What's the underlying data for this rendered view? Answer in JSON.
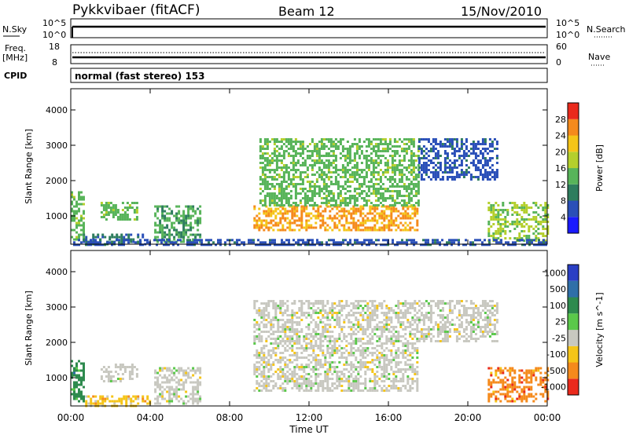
{
  "header": {
    "title": "Pykkvibaer (fitACF)",
    "beam": "Beam 12",
    "date": "15/Nov/2010"
  },
  "top_panels": {
    "nsky_label": "N.Sky",
    "nsearch_label": "N.Search",
    "freq_label_1": "Freq.",
    "freq_label_2": "[MHz]",
    "nave_label": "Nave",
    "cpid_label": "CPID",
    "cpid_value": "normal (fast stereo) 153",
    "noise_ticks_left": [
      "10^5",
      "10^0"
    ],
    "noise_ticks_right": [
      "10^5",
      "10^0"
    ],
    "freq_ticks": [
      "18",
      "8"
    ],
    "nave_ticks": [
      "60",
      "0"
    ]
  },
  "chart_data": [
    {
      "type": "heatmap",
      "name": "Power",
      "ylabel": "Slant Range [km]",
      "xlabel": "Time UT",
      "ylim": [
        200,
        4600
      ],
      "yticks": [
        "1000",
        "2000",
        "3000",
        "4000"
      ],
      "xticks": [
        "00:00",
        "04:00",
        "08:00",
        "12:00",
        "16:00",
        "20:00",
        "00:00"
      ],
      "colorbar": {
        "label": "Power [dB]",
        "range": [
          0,
          32
        ],
        "ticks": [
          "4",
          "8",
          "12",
          "16",
          "20",
          "24",
          "28"
        ],
        "colors": [
          "#1a1aff",
          "#2a4fb8",
          "#2e7d5e",
          "#58b45a",
          "#b4cf2c",
          "#f5c518",
          "#f58a1c",
          "#ea2a1c"
        ]
      },
      "regions": [
        {
          "t": [
            0.0,
            0.6
          ],
          "r": [
            350,
            1700
          ],
          "level": 14
        },
        {
          "t": [
            0.6,
            3.8
          ],
          "r": [
            200,
            500
          ],
          "level": 8
        },
        {
          "t": [
            1.5,
            3.3
          ],
          "r": [
            900,
            1400
          ],
          "level": 14
        },
        {
          "t": [
            4.2,
            6.5
          ],
          "r": [
            250,
            1300
          ],
          "level": 12
        },
        {
          "t": [
            9.2,
            17.5
          ],
          "r": [
            600,
            1300
          ],
          "level": 24
        },
        {
          "t": [
            9.5,
            17.5
          ],
          "r": [
            1300,
            3200
          ],
          "level": 14
        },
        {
          "t": [
            17.5,
            21.5
          ],
          "r": [
            2000,
            3200
          ],
          "level": 6
        },
        {
          "t": [
            21.0,
            24.0
          ],
          "r": [
            300,
            1400
          ],
          "level": 16
        },
        {
          "t": [
            0.0,
            24.0
          ],
          "r": [
            200,
            350
          ],
          "level": 6
        }
      ]
    },
    {
      "type": "heatmap",
      "name": "Velocity",
      "ylabel": "Slant Range [km]",
      "xlabel": "Time UT",
      "ylim": [
        200,
        4600
      ],
      "yticks": [
        "1000",
        "2000",
        "3000",
        "4000"
      ],
      "xticks": [
        "00:00",
        "04:00",
        "08:00",
        "12:00",
        "16:00",
        "20:00",
        "00:00"
      ],
      "colorbar": {
        "label": "Velocity [m s^-1]",
        "ticks": [
          "1000",
          "500",
          "100",
          "25",
          "-25",
          "-100",
          "-500",
          "-1000"
        ],
        "colors": [
          "#2a3fc4",
          "#2f6fa8",
          "#2e8a4e",
          "#5ac84a",
          "#c8c8c0",
          "#f5c518",
          "#f58a1c",
          "#ea2a1c"
        ]
      },
      "regions": [
        {
          "t": [
            0.0,
            0.6
          ],
          "r": [
            350,
            1500
          ],
          "level": 2
        },
        {
          "t": [
            0.6,
            4.0
          ],
          "r": [
            200,
            500
          ],
          "level": 5
        },
        {
          "t": [
            1.5,
            3.3
          ],
          "r": [
            900,
            1400
          ],
          "level": 4
        },
        {
          "t": [
            4.2,
            6.5
          ],
          "r": [
            250,
            1300
          ],
          "level": 4
        },
        {
          "t": [
            9.2,
            17.5
          ],
          "r": [
            600,
            3200
          ],
          "level": 4
        },
        {
          "t": [
            17.5,
            21.5
          ],
          "r": [
            2000,
            3200
          ],
          "level": 4
        },
        {
          "t": [
            21.0,
            24.0
          ],
          "r": [
            300,
            1300
          ],
          "level": 6
        }
      ]
    }
  ]
}
